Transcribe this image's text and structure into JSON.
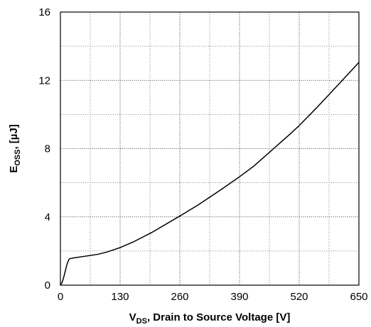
{
  "chart_data": {
    "type": "line",
    "xlabel": {
      "main": "V",
      "sub": "DS",
      "rest": ", Drain to Source Voltage [V]"
    },
    "ylabel": {
      "main": "E",
      "sub": "OSS",
      "rest": ", [µJ]"
    },
    "xlim": [
      0,
      650
    ],
    "ylim": [
      0,
      16
    ],
    "xticks": [
      0,
      130,
      260,
      390,
      520,
      650
    ],
    "xtick_labels": [
      "0",
      "130",
      "260",
      "390",
      "520",
      "650"
    ],
    "yticks": [
      0,
      4,
      8,
      12,
      16
    ],
    "ytick_labels": [
      "0",
      "4",
      "8",
      "12",
      "16"
    ],
    "grid": {
      "major": true,
      "minor": true,
      "x_minor_step": 65,
      "y_minor_step": 2
    },
    "series": [
      {
        "x": [
          0,
          3,
          6,
          9,
          12,
          15,
          18,
          20,
          30,
          50,
          80,
          100,
          130,
          160,
          200,
          260,
          300,
          350,
          390,
          420,
          460,
          500,
          520,
          560,
          600,
          650
        ],
        "y": [
          0,
          0.12,
          0.35,
          0.65,
          0.98,
          1.28,
          1.48,
          1.55,
          1.6,
          1.68,
          1.8,
          1.93,
          2.2,
          2.55,
          3.1,
          4.05,
          4.7,
          5.6,
          6.35,
          6.95,
          7.9,
          8.85,
          9.35,
          10.45,
          11.6,
          13.05
        ]
      }
    ]
  }
}
